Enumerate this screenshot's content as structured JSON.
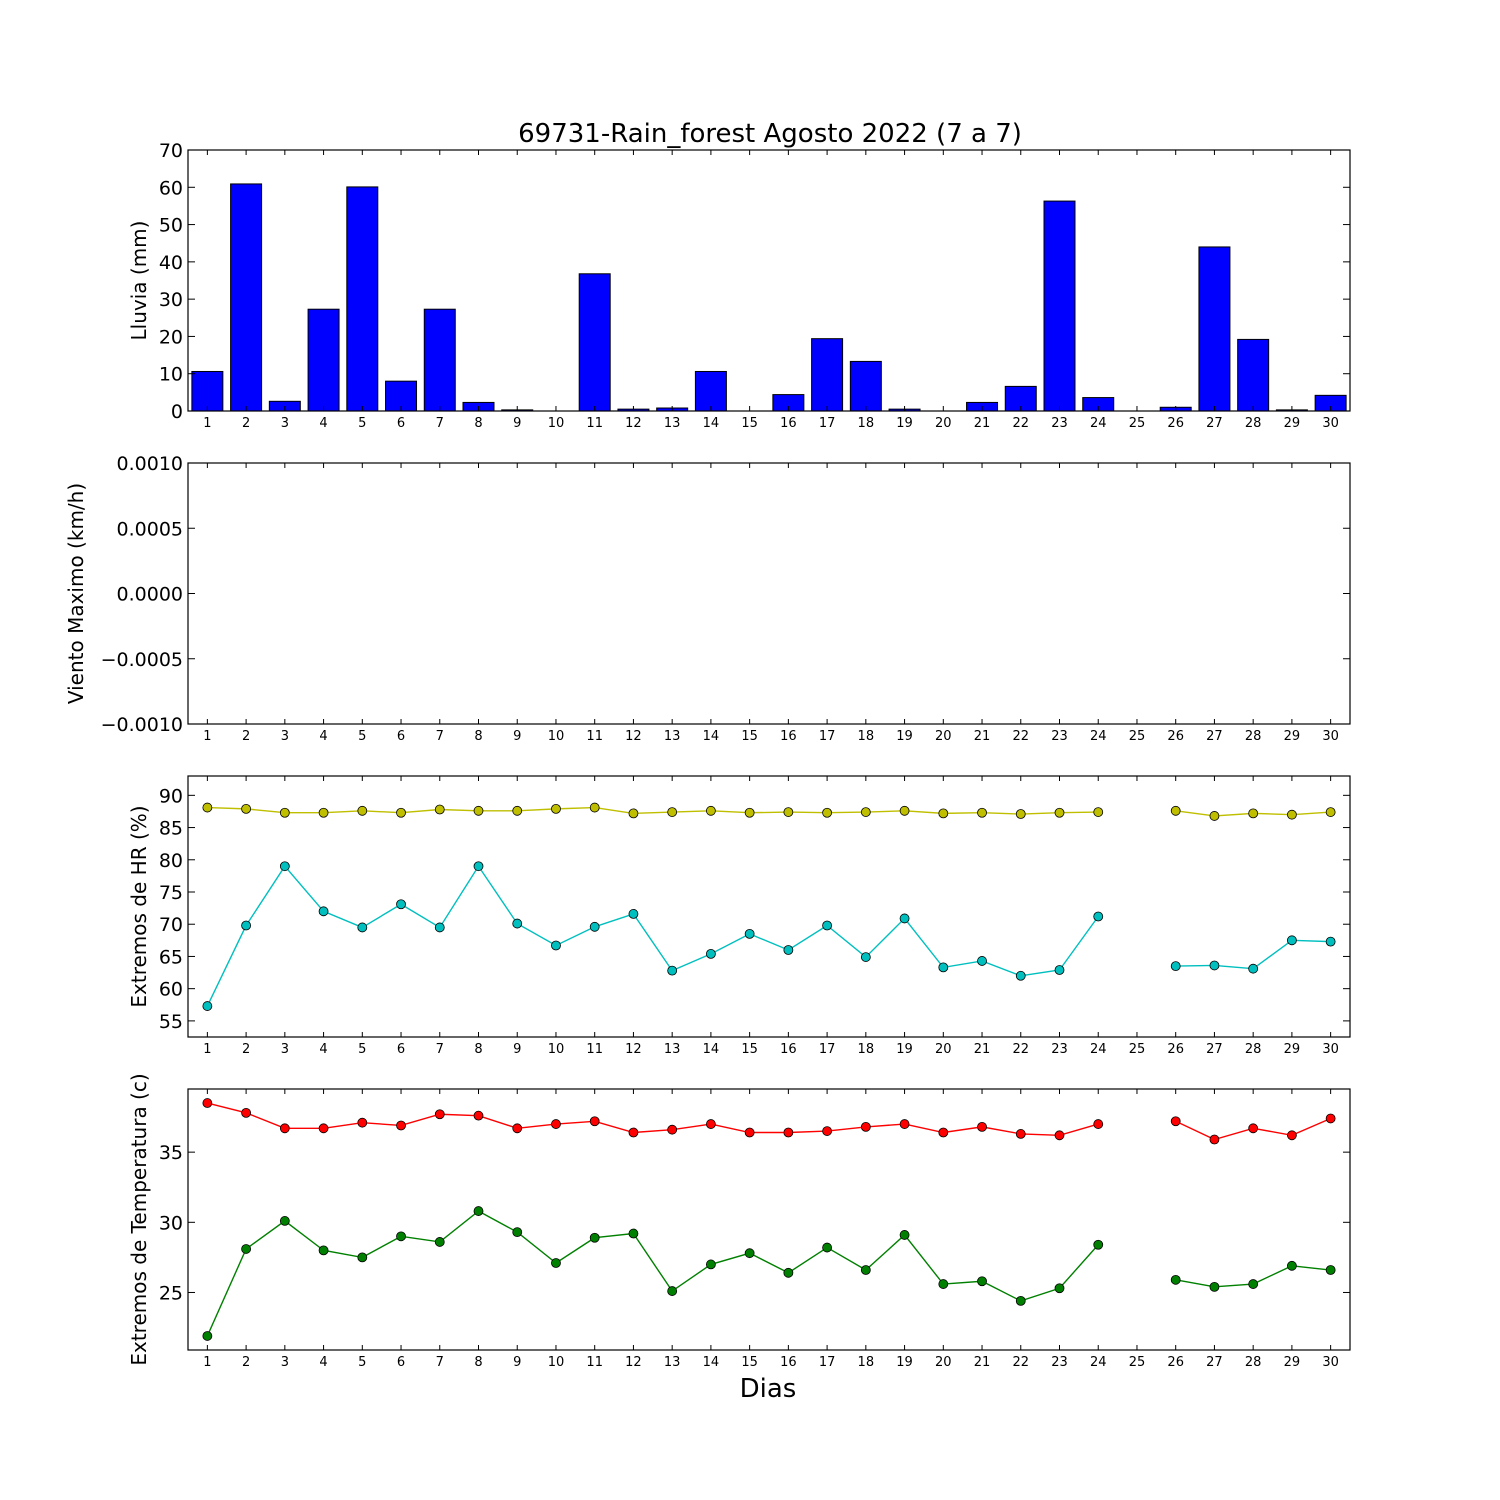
{
  "chart_data": [
    {
      "type": "bar",
      "title": "69731-Rain_forest Agosto 2022  (7 a 7)",
      "ylabel": "Lluvia (mm)",
      "xlabel": "",
      "ylim": [
        0,
        70
      ],
      "yticks": [
        "0",
        "10",
        "20",
        "30",
        "40",
        "50",
        "60",
        "70"
      ],
      "categories": [
        "1",
        "2",
        "3",
        "4",
        "5",
        "6",
        "7",
        "8",
        "9",
        "10",
        "11",
        "12",
        "13",
        "14",
        "15",
        "16",
        "17",
        "18",
        "19",
        "20",
        "21",
        "22",
        "23",
        "24",
        "25",
        "26",
        "27",
        "28",
        "29",
        "30"
      ],
      "values": [
        10.6,
        60.9,
        2.6,
        27.3,
        60.1,
        8.0,
        27.3,
        2.3,
        0.3,
        0.0,
        36.8,
        0.5,
        0.8,
        10.6,
        0.0,
        4.4,
        19.4,
        13.3,
        0.5,
        0.0,
        2.3,
        6.6,
        56.3,
        3.6,
        null,
        1.0,
        44.0,
        19.2,
        0.3,
        4.2
      ],
      "color": "#0000ff"
    },
    {
      "type": "line",
      "title": "",
      "ylabel": "Viento Maximo (km/h)",
      "xlabel": "",
      "ylim": [
        -0.001,
        0.001
      ],
      "yticks": [
        "−0.0010",
        "−0.0005",
        "0.0000",
        "0.0005",
        "0.0010"
      ],
      "categories": [
        "1",
        "2",
        "3",
        "4",
        "5",
        "6",
        "7",
        "8",
        "9",
        "10",
        "11",
        "12",
        "13",
        "14",
        "15",
        "16",
        "17",
        "18",
        "19",
        "20",
        "21",
        "22",
        "23",
        "24",
        "25",
        "26",
        "27",
        "28",
        "29",
        "30"
      ],
      "series": []
    },
    {
      "type": "line",
      "title": "",
      "ylabel": "Extremos de HR (%)",
      "xlabel": "",
      "ylim": [
        52.5,
        93
      ],
      "yticks": [
        "55",
        "60",
        "65",
        "70",
        "75",
        "80",
        "85",
        "90"
      ],
      "categories": [
        "1",
        "2",
        "3",
        "4",
        "5",
        "6",
        "7",
        "8",
        "9",
        "10",
        "11",
        "12",
        "13",
        "14",
        "15",
        "16",
        "17",
        "18",
        "19",
        "20",
        "21",
        "22",
        "23",
        "24",
        "25",
        "26",
        "27",
        "28",
        "29",
        "30"
      ],
      "series": [
        {
          "color": "#bfbf00",
          "values": [
            88.1,
            87.9,
            87.3,
            87.3,
            87.6,
            87.3,
            87.8,
            87.6,
            87.6,
            87.9,
            88.1,
            87.2,
            87.4,
            87.6,
            87.3,
            87.4,
            87.3,
            87.4,
            87.6,
            87.2,
            87.3,
            87.1,
            87.3,
            87.4,
            null,
            87.6,
            86.8,
            87.2,
            87.0,
            87.4
          ]
        },
        {
          "color": "#00bfbf",
          "values": [
            57.3,
            69.8,
            79.0,
            72.0,
            69.5,
            73.1,
            69.5,
            79.0,
            70.1,
            66.7,
            69.6,
            71.6,
            62.8,
            65.4,
            68.5,
            66.0,
            69.8,
            64.9,
            70.9,
            63.3,
            64.3,
            62.0,
            62.9,
            71.2,
            null,
            63.5,
            63.6,
            63.1,
            67.5,
            67.3
          ]
        }
      ]
    },
    {
      "type": "line",
      "title": "",
      "ylabel": "Extremos de Temperatura (c)",
      "xlabel": "Dias",
      "ylim": [
        20.9,
        39.5
      ],
      "yticks": [
        "25",
        "30",
        "35"
      ],
      "categories": [
        "1",
        "2",
        "3",
        "4",
        "5",
        "6",
        "7",
        "8",
        "9",
        "10",
        "11",
        "12",
        "13",
        "14",
        "15",
        "16",
        "17",
        "18",
        "19",
        "20",
        "21",
        "22",
        "23",
        "24",
        "25",
        "26",
        "27",
        "28",
        "29",
        "30"
      ],
      "series": [
        {
          "color": "#ff0000",
          "values": [
            38.5,
            37.8,
            36.7,
            36.7,
            37.1,
            36.9,
            37.7,
            37.6,
            36.7,
            37.0,
            37.2,
            36.4,
            36.6,
            37.0,
            36.4,
            36.4,
            36.5,
            36.8,
            37.0,
            36.4,
            36.8,
            36.3,
            36.2,
            37.0,
            null,
            37.2,
            35.9,
            36.7,
            36.2,
            37.4
          ]
        },
        {
          "color": "#008000",
          "values": [
            21.9,
            28.1,
            30.1,
            28.0,
            27.5,
            29.0,
            28.6,
            30.8,
            29.3,
            27.1,
            28.9,
            29.2,
            25.1,
            27.0,
            27.8,
            26.4,
            28.2,
            26.6,
            29.1,
            25.6,
            25.8,
            24.4,
            25.3,
            28.4,
            null,
            25.9,
            25.4,
            25.6,
            26.9,
            26.6
          ]
        }
      ]
    }
  ]
}
